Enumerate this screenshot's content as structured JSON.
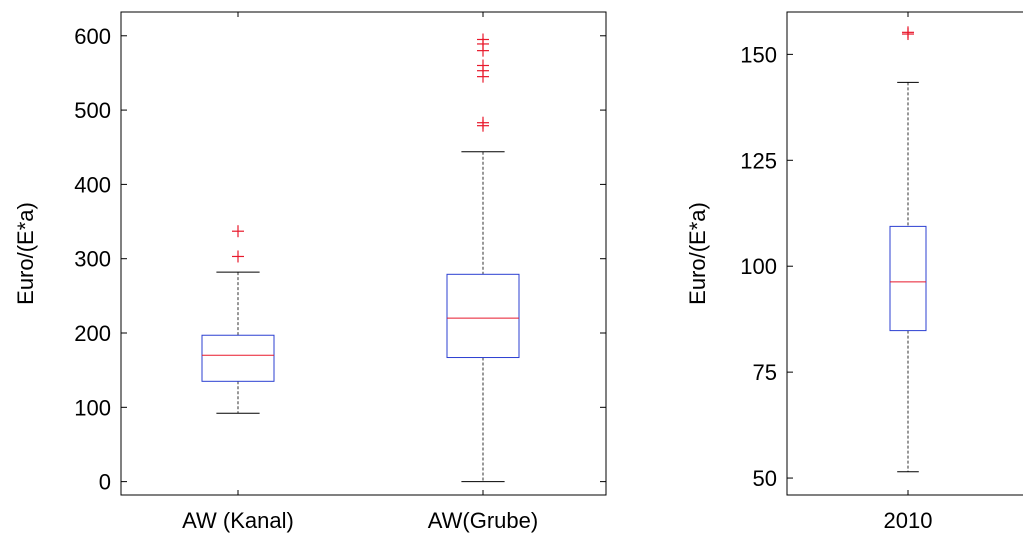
{
  "chart_data": [
    {
      "type": "box",
      "ylabel": "Euro/(E*a)",
      "ylim": [
        -18,
        632
      ],
      "yticks": [
        0,
        100,
        200,
        300,
        400,
        500,
        600
      ],
      "categories": [
        "AW (Kanal)",
        "AW(Grube)"
      ],
      "boxes": [
        {
          "category": "AW (Kanal)",
          "whisker_low": 92,
          "q1": 135,
          "median": 170,
          "q3": 197,
          "whisker_high": 282,
          "outliers": [
            337,
            303
          ]
        },
        {
          "category": "AW(Grube)",
          "whisker_low": 0,
          "q1": 167,
          "median": 220,
          "q3": 279,
          "whisker_high": 444,
          "outliers": [
            595,
            589,
            580,
            560,
            553,
            545,
            483,
            479
          ]
        }
      ],
      "colors": {
        "box": "#2b3fd1",
        "median": "#e8192c",
        "outlier": "#e8192c",
        "whisker": "#000000"
      }
    },
    {
      "type": "box",
      "ylabel": "Euro/(E*a)",
      "ylim": [
        46,
        160
      ],
      "yticks": [
        50,
        75,
        100,
        125,
        150
      ],
      "categories": [
        "2010"
      ],
      "boxes": [
        {
          "category": "2010",
          "whisker_low": 51.5,
          "q1": 84.8,
          "median": 96.3,
          "q3": 109.4,
          "whisker_high": 143.4,
          "outliers": [
            155.2,
            154.8
          ]
        }
      ],
      "colors": {
        "box": "#2b3fd1",
        "median": "#e8192c",
        "outlier": "#e8192c",
        "whisker": "#000000"
      }
    }
  ]
}
